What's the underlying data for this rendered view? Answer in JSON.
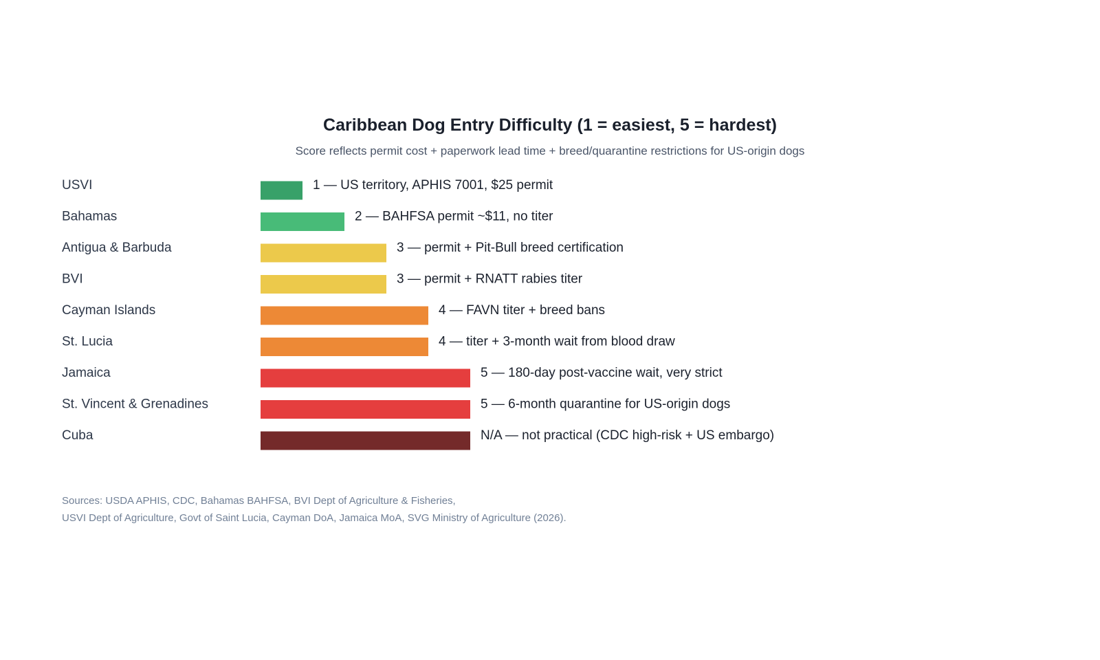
{
  "title": "Caribbean Dog Entry Difficulty (1 = easiest, 5 = hardest)",
  "subtitle": "Score reflects permit cost + paperwork lead time + breed/quarantine restrictions for US-origin dogs",
  "sources": [
    "Sources: USDA APHIS, CDC, Bahamas BAHFSA, BVI Dept of Agriculture & Fisheries,",
    "USVI Dept of Agriculture, Govt of Saint Lucia, Cayman DoA, Jamaica MoA, SVG Ministry of Agriculture (2026)."
  ],
  "chart_data": {
    "type": "bar",
    "orientation": "horizontal",
    "title": "Caribbean Dog Entry Difficulty (1 = easiest, 5 = hardest)",
    "subtitle": "Score reflects permit cost + paperwork lead time + breed/quarantine restrictions for US-origin dogs",
    "xlim": [
      0,
      5
    ],
    "grid": false,
    "categories": [
      "USVI",
      "Bahamas",
      "Antigua & Barbuda",
      "BVI",
      "Cayman Islands",
      "St. Lucia",
      "Jamaica",
      "St. Vincent & Grenadines",
      "Cuba"
    ],
    "values": [
      1,
      2,
      3,
      3,
      4,
      4,
      5,
      5,
      5
    ],
    "labels": [
      "1 — US territory, APHIS 7001, $25 permit",
      "2 — BAHFSA permit ~$11, no titer",
      "3 — permit + Pit-Bull breed certification",
      "3 — permit + RNATT rabies titer",
      "4 — FAVN titer + breed bans",
      "4 — titer + 3-month wait from blood draw",
      "5 — 180-day post-vaccine wait, very strict",
      "5 — 6-month quarantine for US-origin dogs",
      "N/A — not practical (CDC high-risk + US embargo)"
    ],
    "colors": [
      "#38a169",
      "#48bb78",
      "#ecc94b",
      "#ecc94b",
      "#ed8936",
      "#ed8936",
      "#e53e3e",
      "#e53e3e",
      "#742a2a"
    ]
  }
}
